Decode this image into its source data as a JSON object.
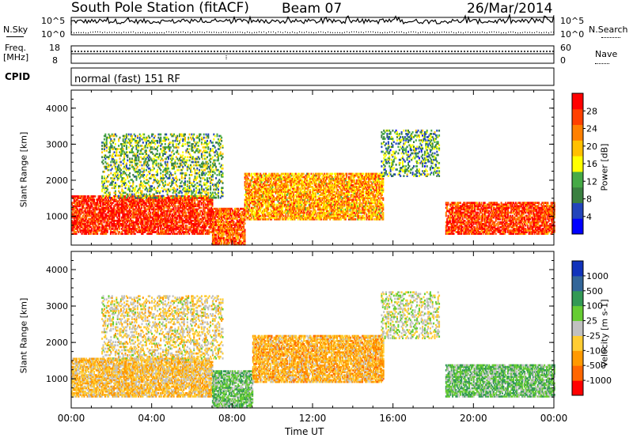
{
  "header": {
    "title": "South Pole Station (fitACF)",
    "beam": "Beam 07",
    "date": "26/Mar/2014"
  },
  "noise_panel": {
    "left_label": "N.Sky",
    "right_label": "N.Search",
    "ticks_left": [
      "10^5",
      "10^0"
    ],
    "ticks_right": [
      "10^5",
      "10^0"
    ]
  },
  "freq_panel": {
    "left_label": "Freq.",
    "left_unit": "[MHz]",
    "right_label": "Nave",
    "ticks_left": [
      "18",
      "8"
    ],
    "ticks_right": [
      "60",
      "0"
    ]
  },
  "cpid": {
    "label": "CPID",
    "text": "normal (fast) 151 RF"
  },
  "x_axis": {
    "label": "Time UT",
    "ticks": [
      "00:00",
      "04:00",
      "08:00",
      "12:00",
      "16:00",
      "20:00",
      "00:00"
    ]
  },
  "colors": {
    "power": [
      "#0000ff",
      "#2244bb",
      "#3a8040",
      "#46aa46",
      "#ffff00",
      "#ffc000",
      "#ff8000",
      "#ff4000",
      "#ff0000"
    ],
    "velocity": [
      "#ff0000",
      "#ff6600",
      "#ff9900",
      "#ffcc33",
      "#c0c0c0",
      "#66cc33",
      "#339955",
      "#336699",
      "#1133bb"
    ]
  },
  "chart_data": [
    {
      "type": "heatmap",
      "ylabel": "Slant Range [km]",
      "yticks": [
        "1000",
        "2000",
        "3000",
        "4000"
      ],
      "ylim": [
        200,
        4500
      ],
      "xlim": [
        0,
        24
      ],
      "colorbar": {
        "label": "Power [dB]",
        "ticks": [
          "4",
          "8",
          "12",
          "16",
          "20",
          "24",
          "28"
        ],
        "range": [
          0,
          30
        ]
      },
      "regions": [
        {
          "t": [
            0.0,
            7.0
          ],
          "r": [
            500,
            1550
          ],
          "v": 27
        },
        {
          "t": [
            7.0,
            8.6
          ],
          "r": [
            200,
            1200
          ],
          "v": 24
        },
        {
          "t": [
            8.6,
            15.5
          ],
          "r": [
            900,
            2200
          ],
          "v": 20
        },
        {
          "t": [
            18.6,
            24.0
          ],
          "r": [
            500,
            1400
          ],
          "v": 26
        },
        {
          "t": [
            15.4,
            18.3
          ],
          "r": [
            2100,
            3400
          ],
          "v": 10
        },
        {
          "t": [
            1.5,
            7.5
          ],
          "r": [
            1500,
            3300
          ],
          "v": 12
        }
      ]
    },
    {
      "type": "heatmap",
      "ylabel": "Slant Range [km]",
      "yticks": [
        "1000",
        "2000",
        "3000",
        "4000"
      ],
      "ylim": [
        200,
        4500
      ],
      "xlim": [
        0,
        24
      ],
      "colorbar": {
        "label": "Velocity [m s-1]",
        "ticks": [
          "1000",
          "500",
          "100",
          "25",
          "-25",
          "-100",
          "-500",
          "-1000"
        ],
        "range": [
          -1200,
          1200
        ]
      },
      "regions": [
        {
          "t": [
            0.0,
            7.0
          ],
          "r": [
            500,
            1550
          ],
          "v": -300
        },
        {
          "t": [
            7.0,
            9.0
          ],
          "r": [
            200,
            1200
          ],
          "v": 300
        },
        {
          "t": [
            9.0,
            15.5
          ],
          "r": [
            900,
            2200
          ],
          "v": -400
        },
        {
          "t": [
            18.6,
            24.0
          ],
          "r": [
            500,
            1400
          ],
          "v": 300
        },
        {
          "t": [
            15.4,
            18.3
          ],
          "r": [
            2100,
            3400
          ],
          "v": 0
        },
        {
          "t": [
            1.5,
            7.5
          ],
          "r": [
            1500,
            3300
          ],
          "v": -150
        }
      ]
    }
  ]
}
